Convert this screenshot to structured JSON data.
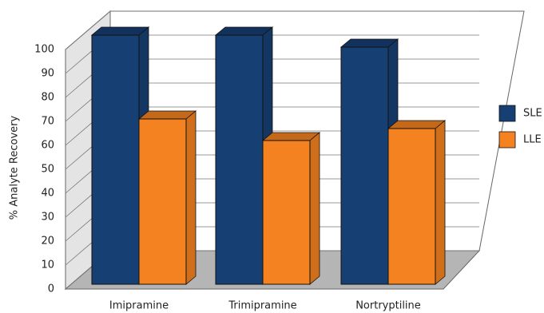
{
  "chart_data": {
    "type": "bar3d",
    "y_label": "% Analyte Recovery",
    "categories": [
      "Imipramine",
      "Trimipramine",
      "Nortryptiline"
    ],
    "series": [
      {
        "name": "SLE",
        "color": "#163f74",
        "values": [
          104,
          104,
          99
        ]
      },
      {
        "name": "LLE",
        "color": "#f58220",
        "values": [
          69,
          60,
          65
        ]
      }
    ],
    "ylim": [
      0,
      100
    ],
    "yticks": [
      0,
      10,
      20,
      30,
      40,
      50,
      60,
      70,
      80,
      90,
      100
    ],
    "grid": true,
    "legend": "right"
  }
}
